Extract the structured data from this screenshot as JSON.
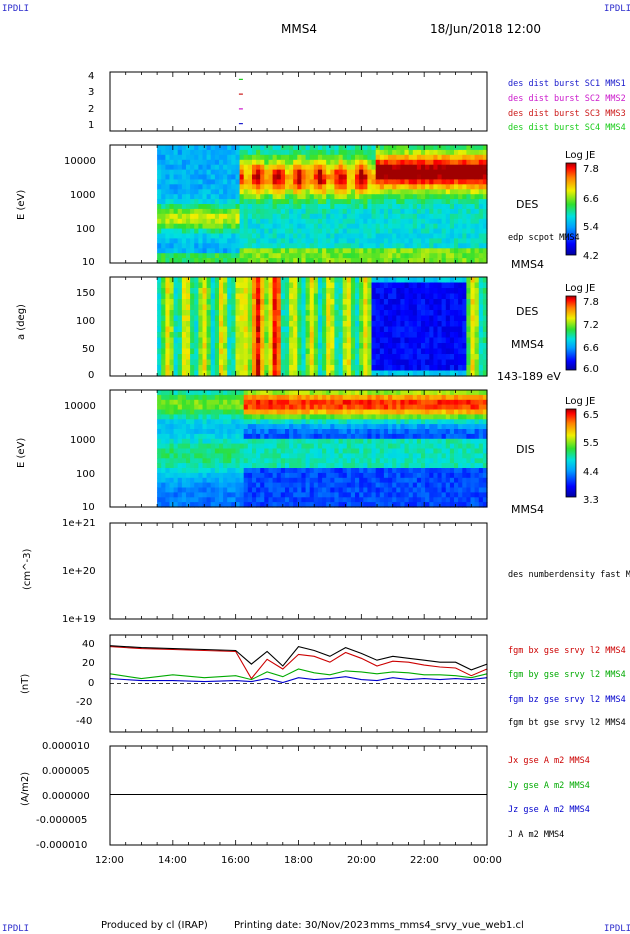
{
  "header": {
    "corner_label": "IPDLI",
    "spacecraft": "MMS4",
    "date_time": "18/Jun/2018 12:00"
  },
  "footer": {
    "produced_by": "Produced by cl (IRAP)",
    "printing_date": "Printing date: 30/Nov/2023",
    "script_name": "mms_mms4_srvy_vue_web1.cl"
  },
  "panels": {
    "p1": {
      "legend": [
        "des dist burst SC1 MMS1",
        "des dist burst SC2 MMS2",
        "des dist burst SC3 MMS3",
        "des dist burst SC4 MMS4"
      ],
      "legend_colors": [
        "#1a1acc",
        "#cc1acc",
        "#cc1a1a",
        "#1acc1a"
      ],
      "yticks": [
        "4",
        "3",
        "2",
        "1"
      ]
    },
    "p2": {
      "ylabel": "E (eV)",
      "yticks": [
        "10000",
        "1000",
        "100",
        "10"
      ],
      "side_label": "DES",
      "side_small": "edp scpot MMS4",
      "side_bottom": "MMS4",
      "cb_title": "Log JE",
      "cb_ticks": [
        "7.8",
        "6.6",
        "5.4",
        "4.2"
      ]
    },
    "p3": {
      "ylabel": "a (deg)",
      "yticks": [
        "150",
        "100",
        "50",
        "0"
      ],
      "side_label": "DES",
      "side_bottom": "MMS4",
      "energy_range": "143-189 eV",
      "cb_title": "Log JE",
      "cb_ticks": [
        "7.8",
        "7.2",
        "6.6",
        "6.0"
      ]
    },
    "p4": {
      "ylabel": "E (eV)",
      "yticks": [
        "10000",
        "1000",
        "100",
        "10"
      ],
      "side_label": "DIS",
      "side_bottom": "MMS4",
      "cb_title": "Log JE",
      "cb_ticks": [
        "6.5",
        "5.5",
        "4.4",
        "3.3"
      ]
    },
    "p5": {
      "ylabel": "(cm^-3)",
      "yticks": [
        "1e+21",
        "1e+20",
        "1e+19"
      ],
      "legend": "des numberdensity fast M"
    },
    "p6": {
      "ylabel": "(nT)",
      "yticks": [
        "40",
        "20",
        "0",
        "-20",
        "-40"
      ],
      "legend": [
        "fgm bx gse srvy l2 MMS4",
        "fgm by gse srvy l2 MMS4",
        "fgm bz gse srvy l2 MMS4",
        "fgm bt gse srvy l2 MMS4"
      ],
      "legend_colors": [
        "#cc0000",
        "#00aa00",
        "#0000cc",
        "#000000"
      ]
    },
    "p7": {
      "ylabel": "(A/m2)",
      "yticks": [
        "0.000010",
        "0.000005",
        "0.000000",
        "-0.000005",
        "-0.000010"
      ],
      "legend": [
        "Jx gse A m2 MMS4",
        "Jy gse A m2 MMS4",
        "Jz gse A m2 MMS4",
        "J A m2 MMS4"
      ],
      "legend_colors": [
        "#cc0000",
        "#00aa00",
        "#0000cc",
        "#000000"
      ]
    }
  },
  "xaxis": {
    "ticks": [
      "12:00",
      "14:00",
      "16:00",
      "18:00",
      "20:00",
      "22:00",
      "00:00"
    ]
  },
  "chart_data": [
    {
      "type": "scatter",
      "panel": "spacecraft configuration",
      "x_range": [
        "12:00",
        "00:00"
      ],
      "ylim": [
        0.5,
        4.5
      ],
      "series": [
        {
          "name": "des dist burst SC1 MMS1",
          "x": [
            "16:10"
          ],
          "y": [
            1
          ]
        },
        {
          "name": "des dist burst SC2 MMS2",
          "x": [
            "16:10"
          ],
          "y": [
            2
          ]
        },
        {
          "name": "des dist burst SC3 MMS3",
          "x": [
            "16:10"
          ],
          "y": [
            3
          ]
        },
        {
          "name": "des dist burst SC4 MMS4",
          "x": [
            "16:10"
          ],
          "y": [
            4
          ]
        }
      ]
    },
    {
      "type": "heatmap",
      "panel": "DES energy spectrogram",
      "ylabel": "E (eV)",
      "yscale": "log",
      "ylim": [
        10,
        30000
      ],
      "data_start": "13:30",
      "colorbar": {
        "title": "Log JE",
        "range": [
          4.2,
          7.8
        ]
      }
    },
    {
      "type": "heatmap",
      "panel": "DES pitch angle",
      "ylabel": "a (deg)",
      "ylim": [
        0,
        180
      ],
      "energy_range": "143-189 eV",
      "data_start": "13:30",
      "colorbar": {
        "title": "Log JE",
        "range": [
          6.0,
          7.8
        ]
      }
    },
    {
      "type": "heatmap",
      "panel": "DIS energy spectrogram",
      "ylabel": "E (eV)",
      "yscale": "log",
      "ylim": [
        10,
        30000
      ],
      "data_start": "13:30",
      "colorbar": {
        "title": "Log JE",
        "range": [
          3.3,
          6.5
        ]
      }
    },
    {
      "type": "line",
      "panel": "density",
      "ylabel": "(cm^-3)",
      "yscale": "log",
      "ylim": [
        1e+19,
        1e+21
      ],
      "series": [
        {
          "name": "des numberdensity fast M",
          "x": [],
          "y": []
        }
      ]
    },
    {
      "type": "line",
      "panel": "magnetic field",
      "ylabel": "(nT)",
      "ylim": [
        -50,
        50
      ],
      "x": [
        "12:00",
        "13:00",
        "14:00",
        "15:00",
        "16:00",
        "16:30",
        "17:00",
        "17:30",
        "18:00",
        "18:30",
        "19:00",
        "19:30",
        "20:00",
        "20:30",
        "21:00",
        "21:30",
        "22:00",
        "22:30",
        "23:00",
        "23:30",
        "00:00"
      ],
      "series": [
        {
          "name": "fgm bx gse srvy l2 MMS4",
          "values": [
            38,
            36,
            35,
            34,
            33,
            5,
            25,
            15,
            30,
            28,
            22,
            32,
            26,
            18,
            23,
            22,
            19,
            17,
            16,
            8,
            15
          ]
        },
        {
          "name": "fgm by gse srvy l2 MMS4",
          "values": [
            10,
            5,
            9,
            6,
            8,
            4,
            12,
            7,
            15,
            11,
            9,
            13,
            12,
            10,
            12,
            11,
            9,
            9,
            8,
            6,
            10
          ]
        },
        {
          "name": "fgm bz gse srvy l2 MMS4",
          "values": [
            5,
            3,
            3,
            2,
            3,
            2,
            5,
            1,
            6,
            4,
            5,
            7,
            4,
            3,
            6,
            4,
            5,
            4,
            5,
            4,
            6
          ]
        },
        {
          "name": "fgm bt gse srvy l2 MMS4",
          "values": [
            39,
            37,
            36,
            35,
            34,
            20,
            33,
            18,
            38,
            34,
            28,
            37,
            31,
            24,
            28,
            26,
            24,
            22,
            22,
            14,
            20
          ]
        }
      ]
    },
    {
      "type": "line",
      "panel": "current density",
      "ylabel": "(A/m2)",
      "ylim": [
        -1e-05,
        1e-05
      ],
      "x": [
        "12:00",
        "00:00"
      ],
      "series": [
        {
          "name": "J A m2 MMS4",
          "values": [
            2e-07,
            2e-07
          ]
        }
      ]
    }
  ]
}
